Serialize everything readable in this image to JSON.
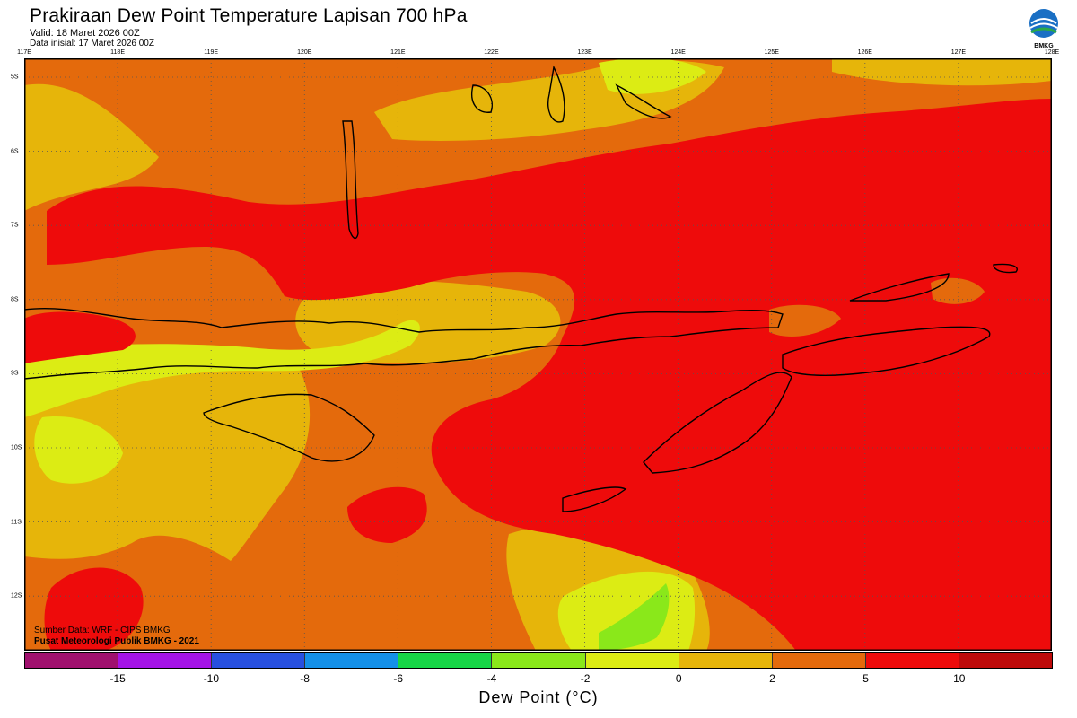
{
  "title": "Prakiraan Dew Point Temperature Lapisan 700 hPa",
  "valid": "Valid: 18 Maret 2026 00Z",
  "init": "Data inisial: 17 Maret 2026 00Z",
  "logo_text": "BMKG",
  "lon_labels": [
    "117E",
    "118E",
    "119E",
    "120E",
    "121E",
    "122E",
    "123E",
    "124E",
    "125E",
    "126E",
    "127E",
    "128E"
  ],
  "lat_labels": [
    "5S",
    "6S",
    "7S",
    "8S",
    "9S",
    "10S",
    "11S",
    "12S"
  ],
  "credit_source": "Sumber Data: WRF - CIPS BMKG",
  "credit_org": "Pusat Meteorologi Publik BMKG - 2021",
  "colorbar": {
    "label": "Dew Point (°C)",
    "ticks": [
      "-15",
      "-10",
      "-8",
      "-6",
      "-4",
      "-2",
      "0",
      "2",
      "5",
      "10"
    ],
    "colors": [
      "#a0106e",
      "#a413e6",
      "#2850e0",
      "#1490e8",
      "#16d646",
      "#8ae81a",
      "#dcec14",
      "#e6b50a",
      "#e46a0c",
      "#ee0b0b",
      "#be0a0a"
    ]
  },
  "map_colors": {
    "orange": "#e46a0c",
    "gold": "#e6b50a",
    "yellow": "#dcec14",
    "green": "#8ae81a",
    "red": "#ee0b0b"
  }
}
